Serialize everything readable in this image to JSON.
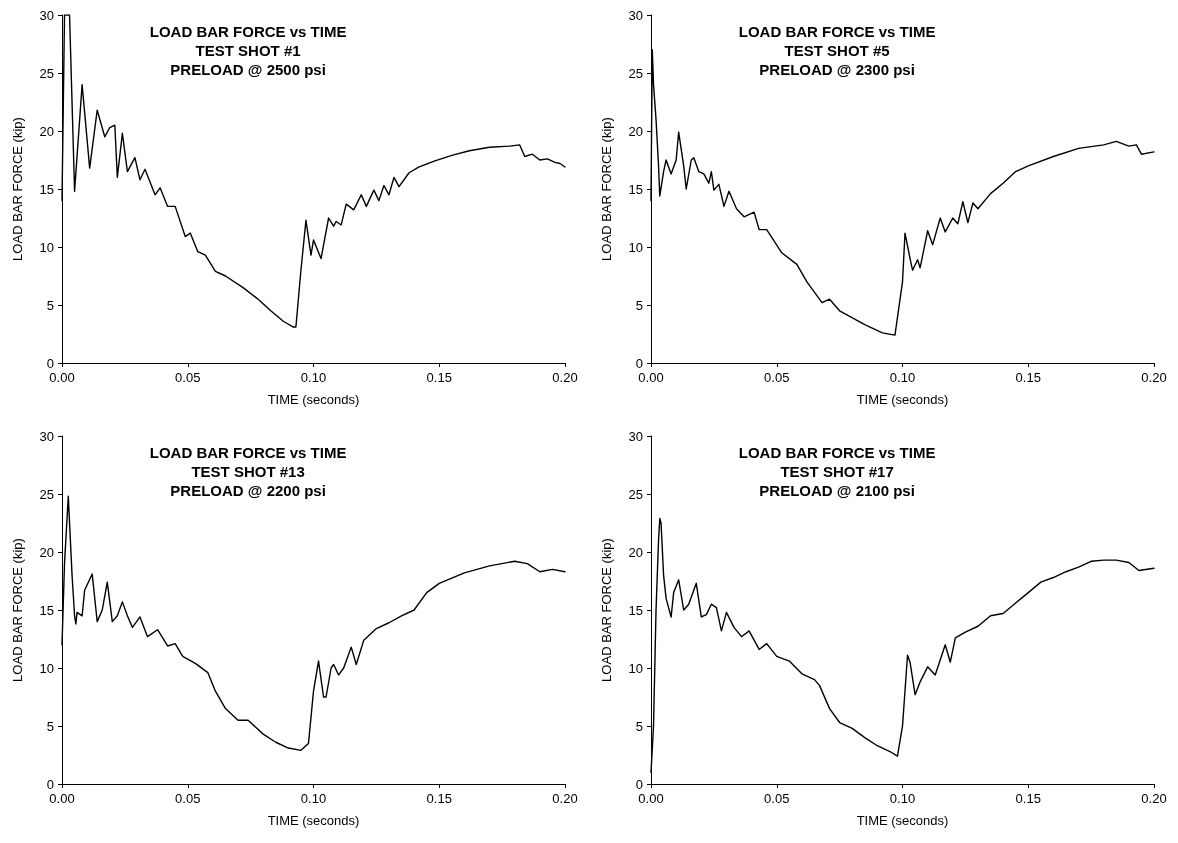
{
  "chart_data": [
    {
      "type": "line",
      "title": "LOAD BAR FORCE vs TIME\nTEST SHOT #1\nPRELOAD @ 2500 psi",
      "xlabel": "TIME (seconds)",
      "ylabel": "LOAD BAR FORCE (kip)",
      "xlim": [
        0,
        0.2
      ],
      "xticks": [
        {
          "value": 0,
          "label": "0.00"
        },
        {
          "value": 0.05,
          "label": "0.05"
        },
        {
          "value": 0.1,
          "label": "0.10"
        },
        {
          "value": 0.15,
          "label": "0.15"
        },
        {
          "value": 0.2,
          "label": "0.20"
        }
      ],
      "ylim": [
        0,
        30
      ],
      "yticks": [
        0,
        5,
        10,
        15,
        20,
        25,
        30
      ],
      "series": [
        {
          "color": "#000000",
          "x": [
            0,
            0.001,
            0.003,
            0.005,
            0.008,
            0.011,
            0.014,
            0.017,
            0.019,
            0.021,
            0.022,
            0.024,
            0.026,
            0.029,
            0.031,
            0.033,
            0.037,
            0.039,
            0.042,
            0.045,
            0.049,
            0.051,
            0.054,
            0.057,
            0.061,
            0.065,
            0.072,
            0.078,
            0.083,
            0.088,
            0.092,
            0.093,
            0.095,
            0.097,
            0.099,
            0.1,
            0.103,
            0.106,
            0.108,
            0.109,
            0.111,
            0.113,
            0.116,
            0.119,
            0.121,
            0.124,
            0.126,
            0.128,
            0.13,
            0.132,
            0.134,
            0.138,
            0.142,
            0.148,
            0.155,
            0.162,
            0.17,
            0.178,
            0.182,
            0.184,
            0.187,
            0.19,
            0.193,
            0.196,
            0.198,
            0.2
          ],
          "values": [
            14,
            30,
            30,
            14.8,
            24,
            16.8,
            21.8,
            19.5,
            20.3,
            20.5,
            16,
            19.8,
            16.5,
            17.7,
            15.8,
            16.7,
            14.5,
            15.1,
            13.5,
            13.5,
            10.9,
            11.2,
            9.6,
            9.3,
            7.9,
            7.5,
            6.5,
            5.5,
            4.5,
            3.6,
            3.1,
            3.1,
            8,
            12.3,
            9.3,
            10.6,
            9,
            12.5,
            11.8,
            12.2,
            11.9,
            13.7,
            13.2,
            14.5,
            13.5,
            14.9,
            14,
            15.3,
            14.5,
            16,
            15.2,
            16.4,
            16.9,
            17.4,
            17.9,
            18.3,
            18.6,
            18.7,
            18.8,
            17.8,
            18,
            17.5,
            17.6,
            17.3,
            17.2,
            16.9
          ]
        }
      ]
    },
    {
      "type": "line",
      "title": "LOAD BAR FORCE vs TIME\nTEST SHOT #5\nPRELOAD @ 2300 psi",
      "xlabel": "TIME (seconds)",
      "ylabel": "LOAD BAR FORCE (kip)",
      "xlim": [
        0,
        0.2
      ],
      "xticks": [
        {
          "value": 0,
          "label": "0.00"
        },
        {
          "value": 0.05,
          "label": "0.05"
        },
        {
          "value": 0.1,
          "label": "0.10"
        },
        {
          "value": 0.15,
          "label": "0.15"
        },
        {
          "value": 0.2,
          "label": "0.20"
        }
      ],
      "ylim": [
        0,
        30
      ],
      "yticks": [
        0,
        5,
        10,
        15,
        20,
        25,
        30
      ],
      "series": [
        {
          "color": "#000000",
          "x": [
            0,
            0.0005,
            0.001,
            0.002,
            0.003,
            0.0035,
            0.005,
            0.006,
            0.008,
            0.01,
            0.011,
            0.013,
            0.014,
            0.016,
            0.017,
            0.019,
            0.021,
            0.023,
            0.024,
            0.025,
            0.027,
            0.029,
            0.031,
            0.034,
            0.037,
            0.041,
            0.043,
            0.046,
            0.052,
            0.058,
            0.062,
            0.068,
            0.071,
            0.075,
            0.085,
            0.092,
            0.097,
            0.1,
            0.101,
            0.103,
            0.104,
            0.106,
            0.107,
            0.11,
            0.112,
            0.115,
            0.117,
            0.12,
            0.122,
            0.124,
            0.126,
            0.128,
            0.13,
            0.135,
            0.14,
            0.145,
            0.15,
            0.16,
            0.17,
            0.18,
            0.185,
            0.19,
            0.193,
            0.195,
            0.2
          ],
          "values": [
            14,
            27,
            24,
            21,
            17,
            14.4,
            16.5,
            17.5,
            16.3,
            17.5,
            19.9,
            17,
            15,
            17.5,
            17.7,
            16.5,
            16.3,
            15.5,
            16.5,
            14.9,
            15.4,
            13.5,
            14.8,
            13.3,
            12.6,
            13,
            11.5,
            11.5,
            9.5,
            8.5,
            7,
            5.2,
            5.5,
            4.5,
            3.3,
            2.6,
            2.4,
            7,
            11.2,
            9,
            8,
            8.9,
            8.2,
            11.4,
            10.2,
            12.5,
            11.3,
            12.5,
            12,
            13.9,
            12.1,
            13.8,
            13.3,
            14.6,
            15.5,
            16.5,
            17,
            17.8,
            18.5,
            18.8,
            19.1,
            18.7,
            18.8,
            18,
            18.2
          ]
        }
      ]
    },
    {
      "type": "line",
      "title": "LOAD BAR FORCE vs TIME\nTEST SHOT #13\nPRELOAD @ 2200 psi",
      "xlabel": "TIME (seconds)",
      "ylabel": "LOAD BAR FORCE (kip)",
      "xlim": [
        0,
        0.2
      ],
      "xticks": [
        {
          "value": 0,
          "label": "0.00"
        },
        {
          "value": 0.05,
          "label": "0.05"
        },
        {
          "value": 0.1,
          "label": "0.10"
        },
        {
          "value": 0.15,
          "label": "0.15"
        },
        {
          "value": 0.2,
          "label": "0.20"
        }
      ],
      "ylim": [
        0,
        30
      ],
      "yticks": [
        0,
        5,
        10,
        15,
        20,
        25,
        30
      ],
      "series": [
        {
          "color": "#000000",
          "x": [
            0,
            0.001,
            0.0025,
            0.004,
            0.005,
            0.0055,
            0.006,
            0.008,
            0.009,
            0.012,
            0.014,
            0.016,
            0.018,
            0.02,
            0.022,
            0.024,
            0.026,
            0.028,
            0.031,
            0.034,
            0.038,
            0.042,
            0.045,
            0.048,
            0.053,
            0.058,
            0.061,
            0.065,
            0.07,
            0.074,
            0.08,
            0.085,
            0.09,
            0.095,
            0.098,
            0.1,
            0.102,
            0.104,
            0.105,
            0.107,
            0.108,
            0.11,
            0.112,
            0.115,
            0.117,
            0.12,
            0.125,
            0.13,
            0.135,
            0.14,
            0.145,
            0.15,
            0.16,
            0.17,
            0.18,
            0.185,
            0.19,
            0.195,
            0.2
          ],
          "values": [
            12,
            19,
            24.8,
            18,
            14.5,
            13.8,
            14.8,
            14.5,
            16.7,
            18.1,
            14,
            15,
            17.4,
            14,
            14.5,
            15.7,
            14.5,
            13.5,
            14.4,
            12.7,
            13.3,
            11.9,
            12.1,
            11,
            10.4,
            9.6,
            8,
            6.5,
            5.5,
            5.5,
            4.3,
            3.6,
            3.1,
            2.9,
            3.5,
            8,
            10.6,
            7.5,
            7.5,
            10,
            10.3,
            9.4,
            10,
            11.8,
            10.3,
            12.4,
            13.4,
            13.9,
            14.5,
            15,
            16.5,
            17.3,
            18.2,
            18.8,
            19.2,
            19,
            18.3,
            18.5,
            18.3
          ]
        }
      ]
    },
    {
      "type": "line",
      "title": "LOAD BAR FORCE vs TIME\nTEST SHOT #17\nPRELOAD @ 2100 psi",
      "xlabel": "TIME (seconds)",
      "ylabel": "LOAD BAR FORCE (kip)",
      "xlim": [
        0,
        0.2
      ],
      "xticks": [
        {
          "value": 0,
          "label": "0.00"
        },
        {
          "value": 0.05,
          "label": "0.05"
        },
        {
          "value": 0.1,
          "label": "0.10"
        },
        {
          "value": 0.15,
          "label": "0.15"
        },
        {
          "value": 0.2,
          "label": "0.20"
        }
      ],
      "ylim": [
        0,
        30
      ],
      "yticks": [
        0,
        5,
        10,
        15,
        20,
        25,
        30
      ],
      "series": [
        {
          "color": "#000000",
          "x": [
            0,
            0.001,
            0.002,
            0.003,
            0.0035,
            0.004,
            0.005,
            0.006,
            0.008,
            0.009,
            0.011,
            0.013,
            0.015,
            0.018,
            0.02,
            0.022,
            0.024,
            0.026,
            0.028,
            0.03,
            0.033,
            0.036,
            0.039,
            0.043,
            0.046,
            0.05,
            0.055,
            0.06,
            0.065,
            0.067,
            0.071,
            0.075,
            0.08,
            0.085,
            0.09,
            0.095,
            0.098,
            0.1,
            0.102,
            0.103,
            0.105,
            0.107,
            0.11,
            0.113,
            0.117,
            0.119,
            0.121,
            0.125,
            0.13,
            0.135,
            0.14,
            0.145,
            0.15,
            0.155,
            0.16,
            0.165,
            0.17,
            0.175,
            0.18,
            0.185,
            0.19,
            0.194,
            0.2
          ],
          "values": [
            1,
            5,
            15,
            21,
            22.9,
            22.5,
            18,
            16,
            14.4,
            16.5,
            17.6,
            15,
            15.5,
            17.3,
            14.4,
            14.6,
            15.5,
            15.2,
            13.2,
            14.8,
            13.5,
            12.7,
            13.2,
            11.6,
            12.1,
            11,
            10.6,
            9.5,
            9,
            8.5,
            6.5,
            5.3,
            4.8,
            4,
            3.3,
            2.8,
            2.4,
            5,
            11.1,
            10.5,
            7.7,
            8.8,
            10.1,
            9.4,
            12,
            10.5,
            12.6,
            13.1,
            13.6,
            14.5,
            14.7,
            15.6,
            16.5,
            17.4,
            17.8,
            18.3,
            18.7,
            19.2,
            19.3,
            19.3,
            19.1,
            18.4,
            18.6
          ]
        }
      ]
    }
  ]
}
